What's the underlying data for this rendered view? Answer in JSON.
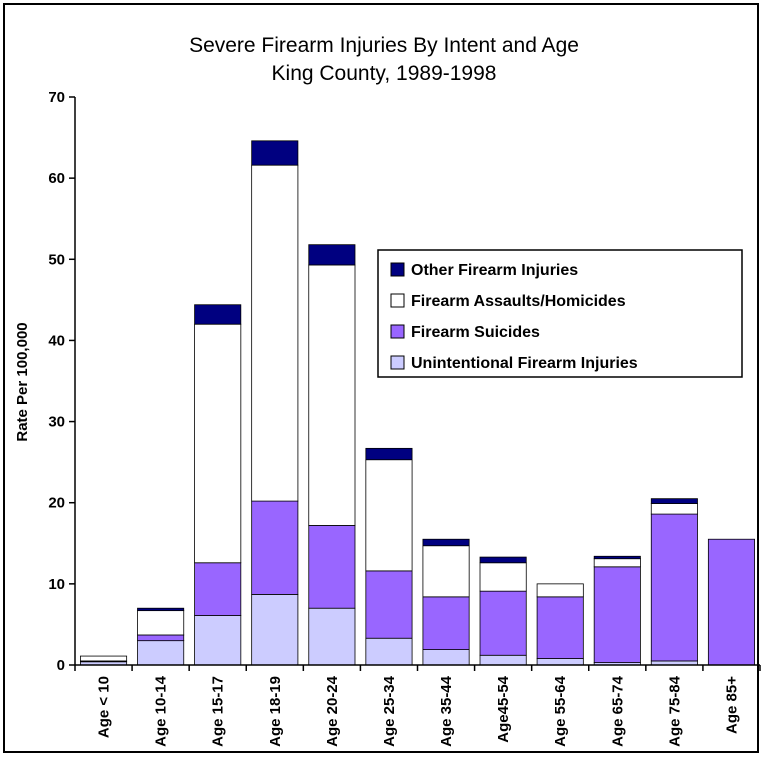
{
  "chart_data": {
    "type": "bar",
    "stacked": true,
    "title": "Severe Firearm Injuries By Intent and Age",
    "subtitle": "King County, 1989-1998",
    "xlabel": "",
    "ylabel": "Rate Per 100,000",
    "ylim": [
      0,
      70
    ],
    "yticks": [
      0,
      10,
      20,
      30,
      40,
      50,
      60,
      70
    ],
    "grid": false,
    "legend_position": "right",
    "categories": [
      "Age < 10",
      "Age 10-14",
      "Age 15-17",
      "Age 18-19",
      "Age 20-24",
      "Age 25-34",
      "Age 35-44",
      "Age45-54",
      "Age 55-64",
      "Age 65-74",
      "Age 75-84",
      "Age 85+"
    ],
    "series": [
      {
        "name": "Unintentional Firearm Injuries",
        "color": "#ccccff",
        "values": [
          0.4,
          3.0,
          6.1,
          8.7,
          7.0,
          3.3,
          1.9,
          1.2,
          0.8,
          0.3,
          0.5,
          0.0
        ]
      },
      {
        "name": "Firearm Suicides",
        "color": "#9966ff",
        "values": [
          0.1,
          0.7,
          6.5,
          11.5,
          10.2,
          8.3,
          6.5,
          7.9,
          7.6,
          11.8,
          18.1,
          15.5
        ]
      },
      {
        "name": "Firearm Assaults/Homicides",
        "color": "#ffffff",
        "values": [
          0.6,
          3.0,
          29.4,
          41.4,
          32.1,
          13.7,
          6.3,
          3.5,
          1.6,
          1.0,
          1.3,
          0.0
        ]
      },
      {
        "name": "Other Firearm Injuries",
        "color": "#000080",
        "values": [
          0.0,
          0.3,
          2.4,
          3.0,
          2.5,
          1.4,
          0.8,
          0.7,
          0.0,
          0.3,
          0.6,
          0.0
        ]
      }
    ],
    "legend_order": [
      3,
      2,
      1,
      0
    ]
  }
}
